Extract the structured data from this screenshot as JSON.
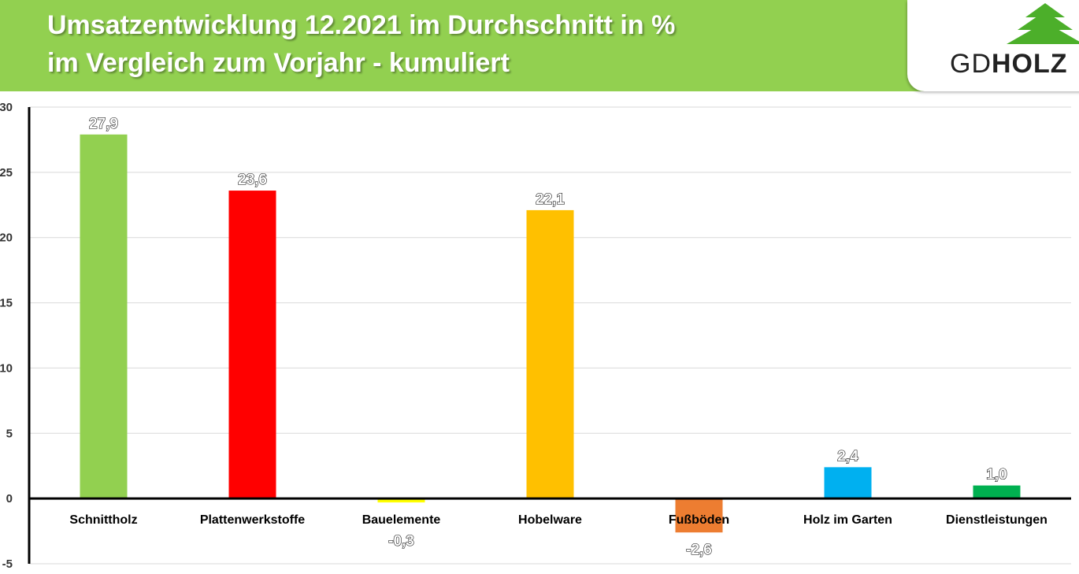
{
  "header": {
    "title_line1": "Umsatzentwicklung 12.2021 im Durchschnitt in %",
    "title_line2": "im Vergleich zum Vorjahr - kumuliert",
    "background_color": "#92d050"
  },
  "logo": {
    "text_light": "GD",
    "text_bold": "HOLZ",
    "icon": "fir-tree-icon",
    "icon_color": "#4caf2a"
  },
  "chart_data": {
    "type": "bar",
    "title": "Umsatzentwicklung 12.2021 im Durchschnitt in % im Vergleich zum Vorjahr - kumuliert",
    "categories": [
      "Schnittholz",
      "Plattenwerkstoffe",
      "Bauelemente",
      "Hobelware",
      "Fußböden",
      "Holz im Garten",
      "Dienstleistungen"
    ],
    "values": [
      27.9,
      23.6,
      -0.3,
      22.1,
      -2.6,
      2.4,
      1.0
    ],
    "data_labels": [
      "27,9",
      "23,6",
      "-0,3",
      "22,1",
      "-2,6",
      "2,4",
      "1,0"
    ],
    "colors": [
      "#92d050",
      "#ff0000",
      "#ffff00",
      "#ffc000",
      "#ed7d31",
      "#00b0f0",
      "#00b050"
    ],
    "ylim": [
      -5,
      30
    ],
    "yticks": [
      -5,
      0,
      5,
      10,
      15,
      20,
      25,
      30
    ],
    "ytick_labels": [
      "-5",
      "0",
      "5",
      "10",
      "15",
      "20",
      "25",
      "30"
    ],
    "xlabel": "",
    "ylabel": "",
    "grid": true,
    "legend": "none"
  }
}
